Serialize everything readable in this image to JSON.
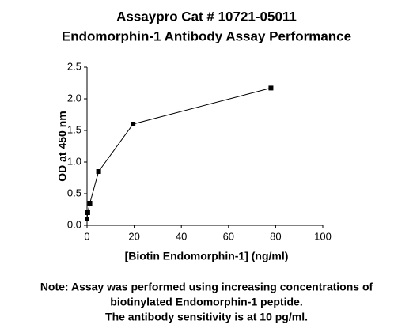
{
  "chart_data": {
    "type": "line",
    "title": "Assaypro Cat # 10721-05011",
    "subtitle": "Endomorphin-1 Antibody Assay Performance",
    "x_label": "[Biotin Endomorphin-1] (ng/ml)",
    "y_label": "OD at 450 nm",
    "notes": [
      "Note: Assay was performed using increasing concentrations of",
      "biotinylated Endomorphin-1 peptide.",
      "The antibody sensitivity is at 10 pg/ml."
    ],
    "x": [
      0,
      0.3,
      1.2,
      4.9,
      19.5,
      78
    ],
    "series": [
      {
        "name": "OD",
        "color": "#000000",
        "values": [
          0.1,
          0.2,
          0.35,
          0.85,
          1.6,
          2.17
        ]
      }
    ],
    "xlim": [
      0,
      100
    ],
    "xticks": [
      0,
      20,
      40,
      60,
      80,
      100
    ],
    "ylim": [
      0,
      2.5
    ],
    "yticks": [
      {
        "value": 0,
        "label": "0.0"
      },
      0.5,
      {
        "value": 1,
        "label": "1.0"
      },
      1.5,
      {
        "value": 2,
        "label": "2.0"
      },
      2.5
    ],
    "grid": false
  }
}
